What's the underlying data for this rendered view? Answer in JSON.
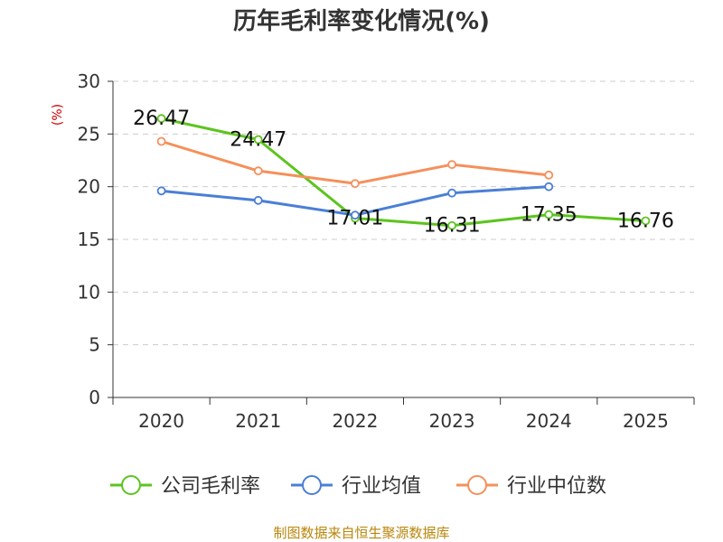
{
  "chart_data": {
    "type": "line",
    "title": "历年毛利率变化情况(%)",
    "ylabel": "(%)",
    "xlabel": "",
    "categories": [
      "2020",
      "2021",
      "2022",
      "2023",
      "2024",
      "2025"
    ],
    "ylim": [
      0,
      30
    ],
    "yticks": [
      0,
      5,
      10,
      15,
      20,
      25,
      30
    ],
    "grid": true,
    "legend_position": "bottom",
    "series": [
      {
        "name": "公司毛利率",
        "color": "#5cc41f",
        "values": [
          26.47,
          24.47,
          17.01,
          16.31,
          17.35,
          16.76
        ],
        "labels": [
          "26.47",
          "24.47",
          "17.01",
          "16.31",
          "17.35",
          "16.76"
        ]
      },
      {
        "name": "行业均值",
        "color": "#4a7fd6",
        "values": [
          19.6,
          18.7,
          17.3,
          19.4,
          20.0,
          null
        ]
      },
      {
        "name": "行业中位数",
        "color": "#f5905a",
        "values": [
          24.3,
          21.5,
          20.3,
          22.1,
          21.1,
          null
        ]
      }
    ]
  },
  "source_text": "制图数据来自恒生聚源数据库"
}
